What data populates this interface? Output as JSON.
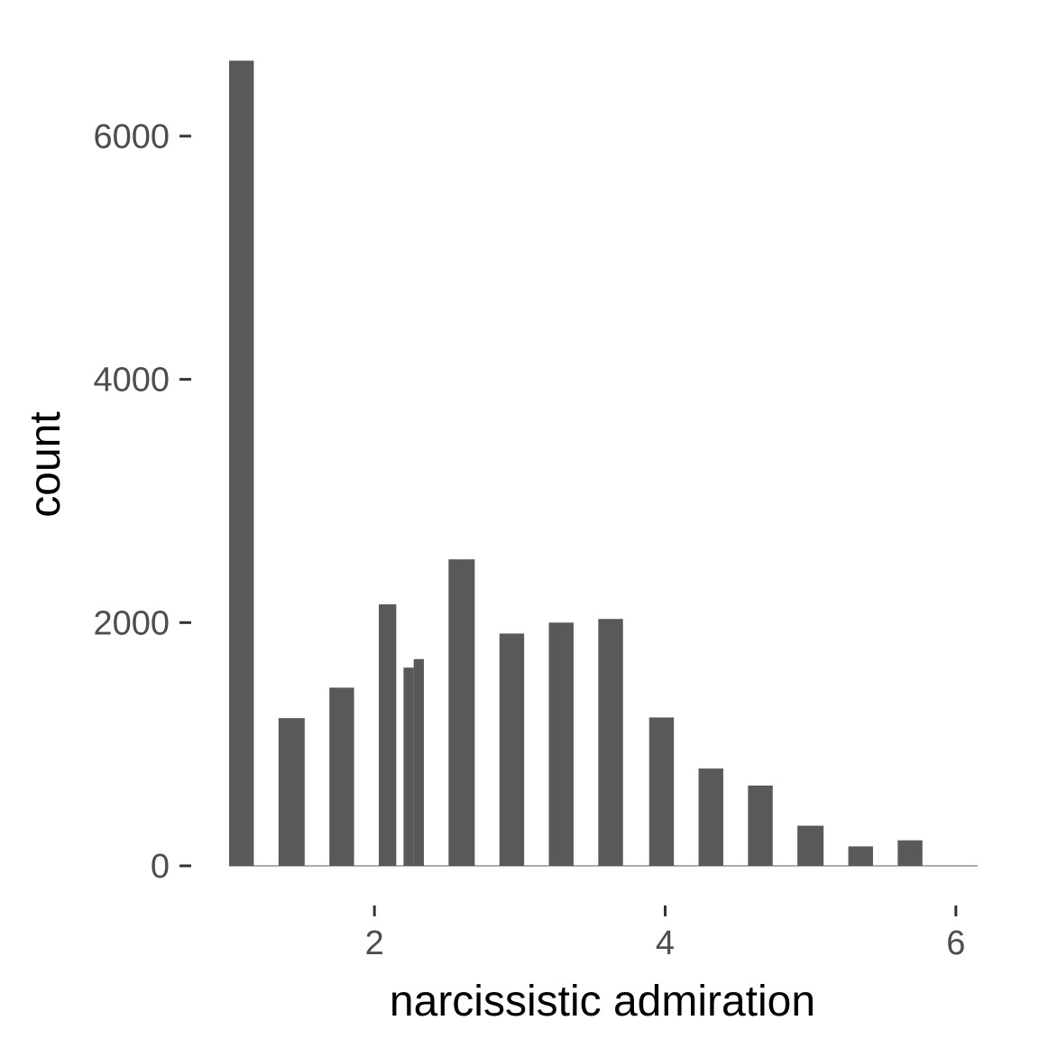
{
  "chart_data": {
    "type": "bar",
    "xlabel": "narcissistic admiration",
    "ylabel": "count",
    "xlim": [
      1.0,
      6.15
    ],
    "ylim": [
      0,
      6600
    ],
    "x_ticks": [
      2,
      4,
      6
    ],
    "y_ticks": [
      0,
      2000,
      4000,
      6000
    ],
    "grid": false,
    "bar_color": "#595959",
    "bars": [
      {
        "x_start": 1.0,
        "x_end": 1.17,
        "value": 6620
      },
      {
        "x_start": 1.34,
        "x_end": 1.52,
        "value": 1215
      },
      {
        "x_start": 1.69,
        "x_end": 1.86,
        "value": 1465
      },
      {
        "x_start": 2.03,
        "x_end": 2.15,
        "value": 2150
      },
      {
        "x_start": 2.2,
        "x_end": 2.27,
        "value": 1630
      },
      {
        "x_start": 2.27,
        "x_end": 2.34,
        "value": 1700
      },
      {
        "x_start": 2.51,
        "x_end": 2.69,
        "value": 2520
      },
      {
        "x_start": 2.86,
        "x_end": 3.03,
        "value": 1910
      },
      {
        "x_start": 3.2,
        "x_end": 3.37,
        "value": 2000
      },
      {
        "x_start": 3.54,
        "x_end": 3.71,
        "value": 2030
      },
      {
        "x_start": 3.89,
        "x_end": 4.06,
        "value": 1220
      },
      {
        "x_start": 4.23,
        "x_end": 4.4,
        "value": 800
      },
      {
        "x_start": 4.57,
        "x_end": 4.74,
        "value": 660
      },
      {
        "x_start": 4.91,
        "x_end": 5.09,
        "value": 330
      },
      {
        "x_start": 5.26,
        "x_end": 5.43,
        "value": 160
      },
      {
        "x_start": 5.6,
        "x_end": 5.77,
        "value": 210
      }
    ]
  }
}
